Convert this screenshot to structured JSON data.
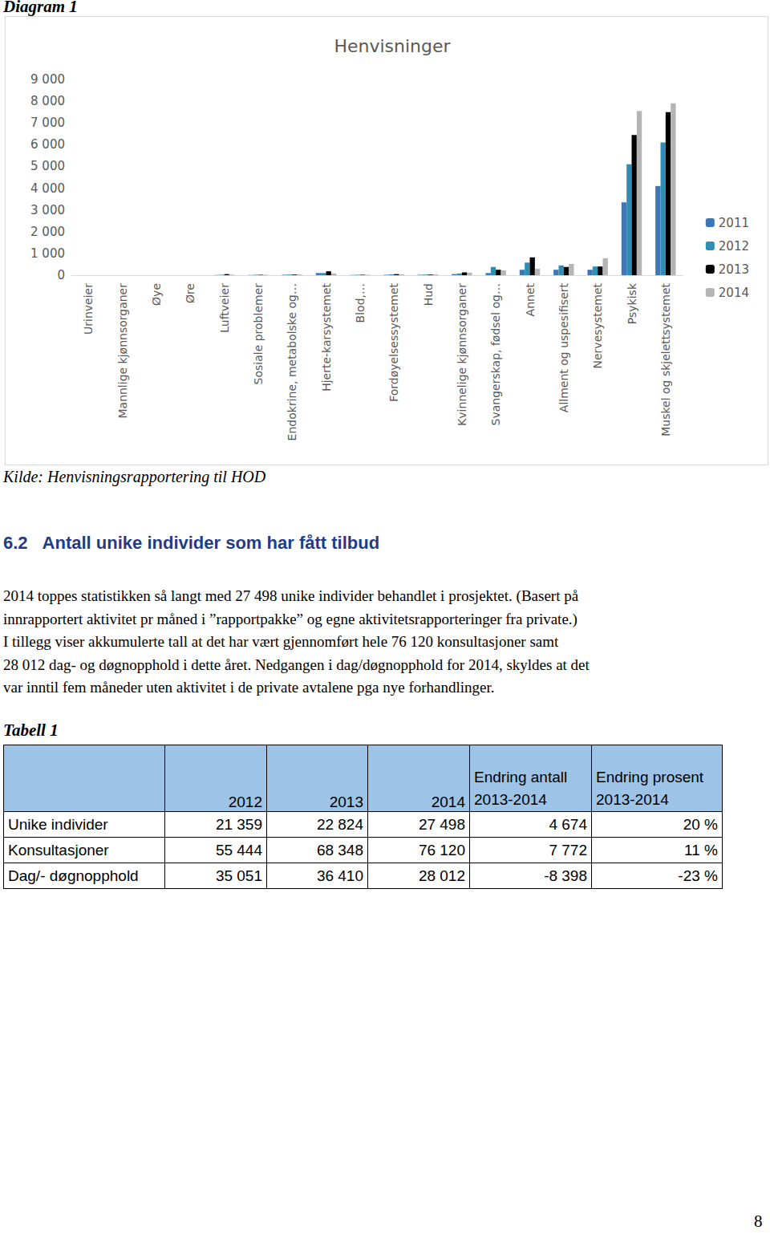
{
  "diagram_label": "Diagram 1",
  "chart_data": {
    "type": "bar",
    "title": "Henvisninger",
    "categories": [
      "Urinveier",
      "Mannlige kjønnsorganer",
      "Øye",
      "Øre",
      "Luftveier",
      "Sosiale problemer",
      "Endokrine, metabolske og…",
      "Hjerte-karsystemet",
      "Blod,…",
      "Fordøyelsessystemet",
      "Hud",
      "Kvinnelige kjønnsorganer",
      "Svangerskap, fødsel og…",
      "Annet",
      "Allment og uspesifisert",
      "Nervesystemet",
      "Psykisk",
      "Muskel og skjelettsystemet"
    ],
    "series": [
      {
        "name": "2011",
        "color": "#3f77b5",
        "values": [
          0,
          0,
          0,
          0,
          10,
          10,
          20,
          100,
          10,
          20,
          20,
          50,
          100,
          250,
          250,
          250,
          3350,
          4100
        ]
      },
      {
        "name": "2012",
        "color": "#2f8db3",
        "values": [
          0,
          0,
          0,
          0,
          20,
          20,
          30,
          100,
          20,
          40,
          30,
          80,
          380,
          580,
          450,
          400,
          5100,
          6100
        ]
      },
      {
        "name": "2013",
        "color": "#000000",
        "values": [
          0,
          0,
          0,
          0,
          50,
          20,
          30,
          180,
          20,
          50,
          30,
          130,
          250,
          820,
          380,
          400,
          6450,
          7500
        ]
      },
      {
        "name": "2014",
        "color": "#b5b5b5",
        "values": [
          0,
          0,
          0,
          0,
          30,
          20,
          30,
          80,
          20,
          40,
          40,
          120,
          220,
          300,
          520,
          780,
          7550,
          7900
        ]
      }
    ],
    "ylim": [
      0,
      9000
    ],
    "yticks": [
      0,
      {
        "value": 1000,
        "label": "1 000"
      },
      {
        "value": 2000,
        "label": "2 000"
      },
      {
        "value": 3000,
        "label": "3 000"
      },
      {
        "value": 4000,
        "label": "4 000"
      },
      {
        "value": 5000,
        "label": "5 000"
      },
      {
        "value": 6000,
        "label": "6 000"
      },
      {
        "value": 7000,
        "label": "7 000"
      },
      {
        "value": 8000,
        "label": "8 000"
      },
      {
        "value": 9000,
        "label": "9 000"
      }
    ],
    "grid": false,
    "legend": "right"
  },
  "source": "Kilde: Henvisningsrapportering til HOD",
  "heading": {
    "number": "6.2",
    "text": "Antall unike individer som har fått tilbud"
  },
  "paragraph_lines": [
    "2014 toppes statistikken så langt med 27 498 unike individer behandlet i prosjektet. (Basert på",
    "innrapportert aktivitet pr måned i ”rapportpakke” og egne aktivitetsrapporteringer fra private.)",
    "I tillegg viser akkumulerte tall at det har vært gjennomført hele 76 120 konsultasjoner samt",
    "28 012 dag- og døgnopphold i dette året. Nedgangen i dag/døgnopphold for 2014, skyldes at det",
    "var inntil fem måneder uten aktivitet i de private avtalene pga nye forhandlinger."
  ],
  "table_label": "Tabell 1",
  "table": {
    "header": [
      "",
      "2012",
      "2013",
      "2014",
      "Endring antall 2013-2014",
      "Endring prosent 2013-2014"
    ],
    "rows": [
      [
        "Unike individer",
        "21 359",
        "22 824",
        "27 498",
        "4 674",
        "20 %"
      ],
      [
        "Konsultasjoner",
        "55 444",
        "68 348",
        "76 120",
        "7 772",
        "11 %"
      ],
      [
        "Dag/- døgnopphold",
        "35 051",
        "36 410",
        "28 012",
        "-8 398",
        "-23 %"
      ]
    ]
  },
  "page_number": "8"
}
